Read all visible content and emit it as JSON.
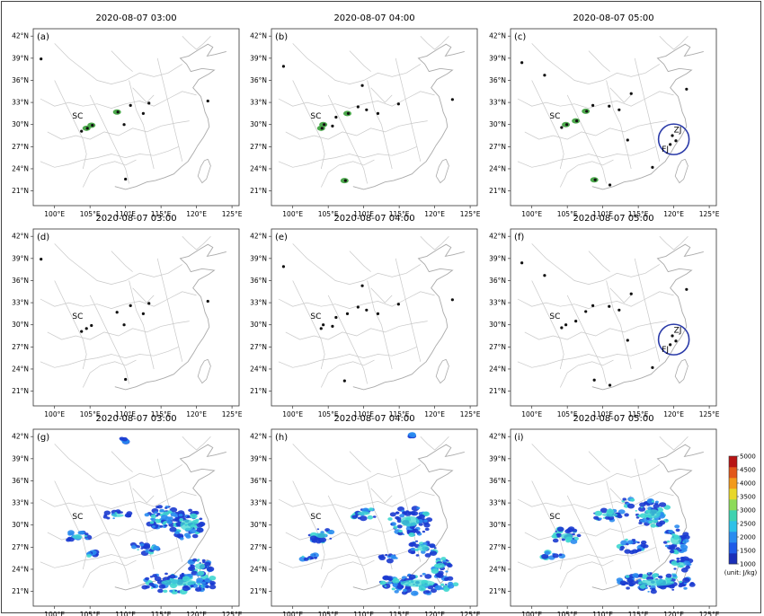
{
  "chart_data": {
    "type": "heatmap",
    "layout": "3x3 grid of maps",
    "x_ticks": [
      "100°E",
      "105°E",
      "110°E",
      "115°E",
      "120°E",
      "125°E"
    ],
    "y_ticks": [
      "21°N",
      "24°N",
      "27°N",
      "30°N",
      "33°N",
      "36°N",
      "39°N",
      "42°N"
    ],
    "xlim": [
      97,
      126
    ],
    "ylim": [
      19,
      43
    ],
    "panels": [
      {
        "label": "(a)",
        "title": "2020-08-07 03:00",
        "field": "detected",
        "highlight": false
      },
      {
        "label": "(b)",
        "title": "2020-08-07 04:00",
        "field": "detected",
        "highlight": false
      },
      {
        "label": "(c)",
        "title": "2020-08-07 05:00",
        "field": "detected",
        "highlight": true
      },
      {
        "label": "(d)",
        "title": "2020-08-07 03:00",
        "field": "observed",
        "highlight": false
      },
      {
        "label": "(e)",
        "title": "2020-08-07 04:00",
        "field": "observed",
        "highlight": false
      },
      {
        "label": "(f)",
        "title": "2020-08-07 05:00",
        "field": "observed",
        "highlight": true
      },
      {
        "label": "(g)",
        "title": "2020-08-07 03:00",
        "field": "cape",
        "highlight": false
      },
      {
        "label": "(h)",
        "title": "2020-08-07 04:00",
        "field": "cape",
        "highlight": false
      },
      {
        "label": "(i)",
        "title": "2020-08-07 05:00",
        "field": "cape",
        "highlight": false
      }
    ],
    "region_labels": {
      "sc": "SC",
      "zj": "ZJ",
      "fj": "FJ"
    },
    "regions": {
      "sc": {
        "lon": 102.5,
        "lat": 30.8
      },
      "zj": {
        "lon": 120.0,
        "lat": 28.9
      },
      "fj": {
        "lon": 118.3,
        "lat": 26.3
      },
      "circle_center": {
        "lon": 120.0,
        "lat": 28.0
      }
    },
    "storm_cells": {
      "t03": [
        {
          "lon": 104.5,
          "lat": 29.5,
          "green": true
        },
        {
          "lon": 105.2,
          "lat": 29.9,
          "green": true
        },
        {
          "lon": 103.8,
          "lat": 29.1,
          "green": false
        },
        {
          "lon": 108.8,
          "lat": 31.7,
          "green": true
        },
        {
          "lon": 110.7,
          "lat": 32.6,
          "green": false
        },
        {
          "lon": 112.5,
          "lat": 31.5,
          "green": false
        },
        {
          "lon": 113.3,
          "lat": 32.9,
          "green": false
        },
        {
          "lon": 109.8,
          "lat": 30.0,
          "green": false
        },
        {
          "lon": 110.0,
          "lat": 22.6,
          "green": false
        },
        {
          "lon": 121.6,
          "lat": 33.2,
          "green": false
        },
        {
          "lon": 98.1,
          "lat": 38.9,
          "green": false
        }
      ],
      "t04": [
        {
          "lon": 104.3,
          "lat": 30.0,
          "green": true
        },
        {
          "lon": 105.6,
          "lat": 29.8,
          "green": false
        },
        {
          "lon": 104.0,
          "lat": 29.5,
          "green": true
        },
        {
          "lon": 107.7,
          "lat": 31.5,
          "green": true
        },
        {
          "lon": 109.2,
          "lat": 32.4,
          "green": false
        },
        {
          "lon": 110.4,
          "lat": 32.0,
          "green": false
        },
        {
          "lon": 109.8,
          "lat": 35.3,
          "green": false
        },
        {
          "lon": 112.0,
          "lat": 31.5,
          "green": false
        },
        {
          "lon": 106.1,
          "lat": 31.0,
          "green": false
        },
        {
          "lon": 107.3,
          "lat": 22.4,
          "green": true
        },
        {
          "lon": 114.9,
          "lat": 32.8,
          "green": false
        },
        {
          "lon": 122.5,
          "lat": 33.4,
          "green": false
        },
        {
          "lon": 98.7,
          "lat": 37.9,
          "green": false
        }
      ],
      "t05": [
        {
          "lon": 104.8,
          "lat": 30.0,
          "green": true
        },
        {
          "lon": 104.2,
          "lat": 29.6,
          "green": false
        },
        {
          "lon": 107.6,
          "lat": 31.8,
          "green": true
        },
        {
          "lon": 106.2,
          "lat": 30.5,
          "green": true
        },
        {
          "lon": 108.6,
          "lat": 32.6,
          "green": false
        },
        {
          "lon": 119.8,
          "lat": 28.5,
          "green": false
        },
        {
          "lon": 120.3,
          "lat": 27.8,
          "green": false
        },
        {
          "lon": 119.5,
          "lat": 27.3,
          "green": false
        },
        {
          "lon": 108.8,
          "lat": 22.5,
          "green": true
        },
        {
          "lon": 98.6,
          "lat": 38.4,
          "green": false
        },
        {
          "lon": 101.8,
          "lat": 36.7,
          "green": false
        },
        {
          "lon": 110.9,
          "lat": 32.5,
          "green": false
        },
        {
          "lon": 112.3,
          "lat": 32.0,
          "green": false
        },
        {
          "lon": 114.0,
          "lat": 34.2,
          "green": false
        },
        {
          "lon": 121.8,
          "lat": 34.8,
          "green": false
        },
        {
          "lon": 113.5,
          "lat": 27.9,
          "green": false
        },
        {
          "lon": 111.0,
          "lat": 21.8,
          "green": false
        },
        {
          "lon": 117.0,
          "lat": 24.2,
          "green": false
        }
      ]
    },
    "cape_areas": {
      "t03": [
        {
          "lon": 103.2,
          "lat": 28.4,
          "w": 3.2,
          "h": 1.6,
          "core": true
        },
        {
          "lon": 108.9,
          "lat": 31.3,
          "w": 3.8,
          "h": 1.3,
          "core": true
        },
        {
          "lon": 115.5,
          "lat": 31.0,
          "w": 5.2,
          "h": 3.4,
          "core": false
        },
        {
          "lon": 118.7,
          "lat": 30.0,
          "w": 4.4,
          "h": 4.2,
          "core": true
        },
        {
          "lon": 112.5,
          "lat": 26.8,
          "w": 4.2,
          "h": 1.6,
          "core": false
        },
        {
          "lon": 117.5,
          "lat": 22.2,
          "w": 11.0,
          "h": 2.6,
          "core": true
        },
        {
          "lon": 120.5,
          "lat": 24.4,
          "w": 3.2,
          "h": 2.4,
          "core": true
        },
        {
          "lon": 105.5,
          "lat": 26.0,
          "w": 2.2,
          "h": 0.8,
          "core": false
        },
        {
          "lon": 109.5,
          "lat": 41.5,
          "w": 1.8,
          "h": 0.6,
          "core": false
        }
      ],
      "t04": [
        {
          "lon": 104.0,
          "lat": 28.6,
          "w": 3.4,
          "h": 2.0,
          "core": true
        },
        {
          "lon": 110.0,
          "lat": 31.6,
          "w": 4.0,
          "h": 1.5,
          "core": true
        },
        {
          "lon": 116.5,
          "lat": 30.5,
          "w": 5.8,
          "h": 4.0,
          "core": true
        },
        {
          "lon": 118.4,
          "lat": 26.9,
          "w": 3.6,
          "h": 2.6,
          "core": true
        },
        {
          "lon": 117.6,
          "lat": 22.1,
          "w": 10.8,
          "h": 2.8,
          "core": true
        },
        {
          "lon": 120.8,
          "lat": 24.5,
          "w": 2.8,
          "h": 2.2,
          "core": true
        },
        {
          "lon": 102.0,
          "lat": 25.8,
          "w": 3.0,
          "h": 1.0,
          "core": false
        },
        {
          "lon": 113.2,
          "lat": 25.6,
          "w": 3.2,
          "h": 1.2,
          "core": false
        },
        {
          "lon": 116.8,
          "lat": 42.1,
          "w": 0.7,
          "h": 0.4,
          "core": false
        }
      ],
      "t05": [
        {
          "lon": 104.9,
          "lat": 28.5,
          "w": 3.8,
          "h": 2.2,
          "core": true
        },
        {
          "lon": 111.0,
          "lat": 31.4,
          "w": 4.8,
          "h": 1.6,
          "core": true
        },
        {
          "lon": 117.0,
          "lat": 31.5,
          "w": 5.0,
          "h": 3.6,
          "core": true
        },
        {
          "lon": 120.3,
          "lat": 28.0,
          "w": 3.4,
          "h": 3.8,
          "core": true
        },
        {
          "lon": 114.0,
          "lat": 27.2,
          "w": 4.2,
          "h": 1.8,
          "core": false
        },
        {
          "lon": 117.6,
          "lat": 22.2,
          "w": 11.0,
          "h": 2.6,
          "core": true
        },
        {
          "lon": 121.0,
          "lat": 24.6,
          "w": 2.8,
          "h": 2.2,
          "core": true
        },
        {
          "lon": 102.8,
          "lat": 25.9,
          "w": 3.0,
          "h": 1.0,
          "core": false
        },
        {
          "lon": 113.5,
          "lat": 33.0,
          "w": 2.0,
          "h": 1.2,
          "core": false
        }
      ]
    },
    "colorbar": {
      "ticks": [
        1000,
        1500,
        2000,
        2500,
        3000,
        3500,
        4000,
        4500,
        5000
      ],
      "colors": [
        "#1a2fb8",
        "#1f5be8",
        "#2a8cf0",
        "#2dc1e8",
        "#3fd2b0",
        "#8ddb5a",
        "#e8d72a",
        "#f29a1c",
        "#e2571a",
        "#b81414"
      ],
      "unit": "(unit: J/kg)"
    },
    "colors": {
      "storm_black": "#111111",
      "storm_green": "#4ca84c",
      "circle": "#2a3aa8",
      "boundary": "#c8c8c8",
      "cape_low": "#1a3ad0",
      "cape_mid": "#2a8cf0",
      "cape_high": "#3fd7d0"
    }
  }
}
